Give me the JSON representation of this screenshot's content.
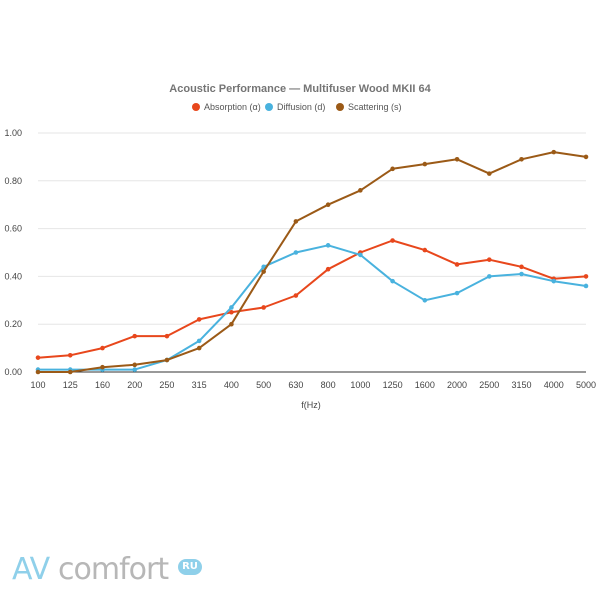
{
  "chart_data": {
    "type": "line",
    "title": "Acoustic Performance — Multifuser Wood MKII 64",
    "xlabel": "f(Hz)",
    "ylabel": "",
    "categories": [
      "100",
      "125",
      "160",
      "200",
      "250",
      "315",
      "400",
      "500",
      "630",
      "800",
      "1000",
      "1250",
      "1600",
      "2000",
      "2500",
      "3150",
      "4000",
      "5000"
    ],
    "ylim": [
      0,
      1
    ],
    "yticks": [
      "0.00",
      "0.20",
      "0.40",
      "0.60",
      "0.80",
      "1.00"
    ],
    "grid": true,
    "legend_position": "top",
    "series": [
      {
        "name": "Absorption (α)",
        "color": "#e8471c",
        "values": [
          0.06,
          0.07,
          0.1,
          0.15,
          0.15,
          0.22,
          0.25,
          0.27,
          0.32,
          0.43,
          0.5,
          0.55,
          0.51,
          0.45,
          0.47,
          0.44,
          0.39,
          0.4
        ]
      },
      {
        "name": "Diffusion (d)",
        "color": "#49b2de",
        "values": [
          0.01,
          0.01,
          0.01,
          0.01,
          0.05,
          0.13,
          0.27,
          0.44,
          0.5,
          0.53,
          0.49,
          0.38,
          0.3,
          0.33,
          0.4,
          0.41,
          0.38,
          0.36
        ]
      },
      {
        "name": "Scattering (s)",
        "color": "#9b5a17",
        "values": [
          0.0,
          0.0,
          0.02,
          0.03,
          0.05,
          0.1,
          0.2,
          0.42,
          0.63,
          0.7,
          0.76,
          0.85,
          0.87,
          0.89,
          0.83,
          0.89,
          0.92,
          0.9
        ]
      }
    ]
  },
  "watermark": {
    "av": "AV",
    "comfort": "comfort",
    "ru": "RU"
  }
}
